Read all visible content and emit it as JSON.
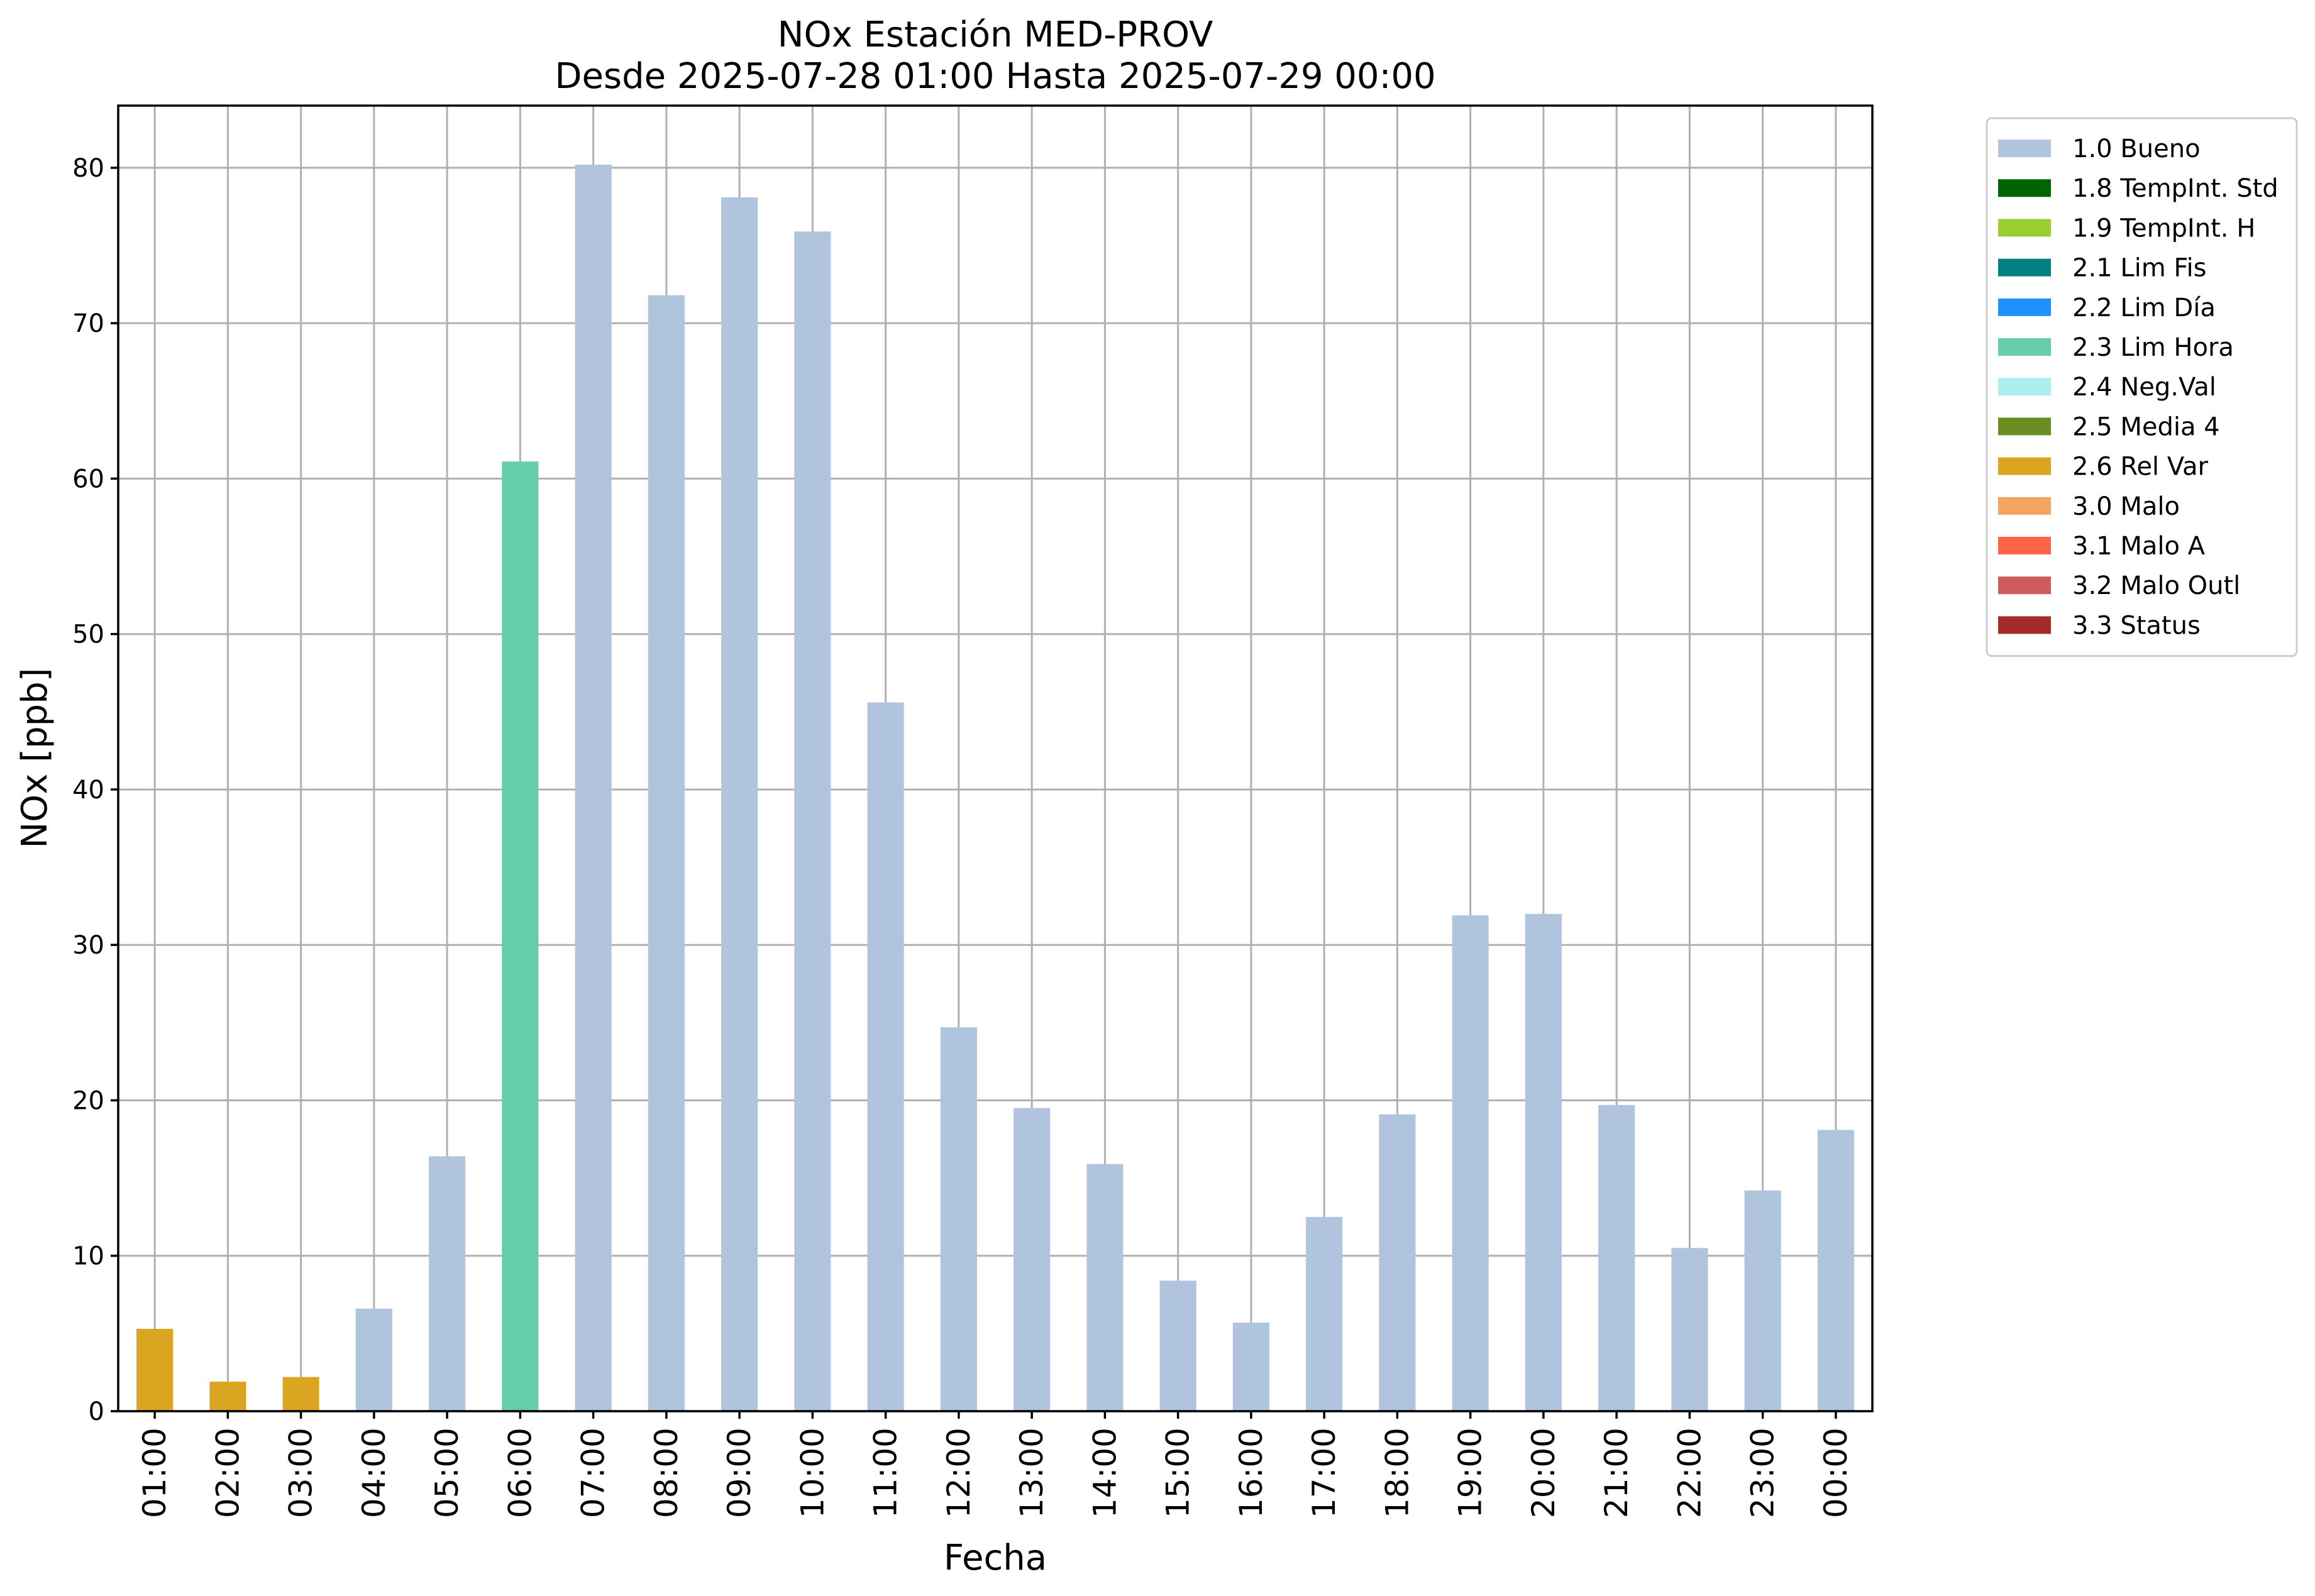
{
  "chart_data": {
    "type": "bar",
    "title": "NOx Estación MED-PROV",
    "subtitle": "Desde 2025-07-28 01:00 Hasta 2025-07-29 00:00",
    "xlabel": "Fecha",
    "ylabel": "NOx [ppb]",
    "ylim": [
      0,
      84
    ],
    "yticks": [
      0,
      10,
      20,
      30,
      40,
      50,
      60,
      70,
      80
    ],
    "grid": true,
    "legend_position": "outside-top-right",
    "categories": [
      "01:00",
      "02:00",
      "03:00",
      "04:00",
      "05:00",
      "06:00",
      "07:00",
      "08:00",
      "09:00",
      "10:00",
      "11:00",
      "12:00",
      "13:00",
      "14:00",
      "15:00",
      "16:00",
      "17:00",
      "18:00",
      "19:00",
      "20:00",
      "21:00",
      "22:00",
      "23:00",
      "00:00"
    ],
    "values": [
      5.3,
      1.9,
      2.2,
      6.6,
      16.4,
      61.1,
      80.2,
      71.8,
      78.1,
      75.9,
      45.6,
      24.7,
      19.5,
      15.9,
      8.4,
      5.7,
      12.5,
      19.1,
      31.9,
      32.0,
      19.7,
      10.5,
      14.2,
      18.1
    ],
    "bar_flags": [
      "2.6 Rel Var",
      "2.6 Rel Var",
      "2.6 Rel Var",
      "1.0 Bueno",
      "1.0 Bueno",
      "2.3 Lim Hora",
      "1.0 Bueno",
      "1.0 Bueno",
      "1.0 Bueno",
      "1.0 Bueno",
      "1.0 Bueno",
      "1.0 Bueno",
      "1.0 Bueno",
      "1.0 Bueno",
      "1.0 Bueno",
      "1.0 Bueno",
      "1.0 Bueno",
      "1.0 Bueno",
      "1.0 Bueno",
      "1.0 Bueno",
      "1.0 Bueno",
      "1.0 Bueno",
      "1.0 Bueno",
      "1.0 Bueno"
    ],
    "legend": [
      {
        "label": "1.0 Bueno",
        "color": "#b0c4de"
      },
      {
        "label": "1.8 TempInt. Std",
        "color": "#006400"
      },
      {
        "label": "1.9 TempInt. H",
        "color": "#9acd32"
      },
      {
        "label": "2.1 Lim Fis",
        "color": "#008080"
      },
      {
        "label": "2.2 Lim Día",
        "color": "#1e90ff"
      },
      {
        "label": "2.3 Lim Hora",
        "color": "#66cdaa"
      },
      {
        "label": "2.4 Neg.Val",
        "color": "#afeeee"
      },
      {
        "label": "2.5 Media 4",
        "color": "#6b8e23"
      },
      {
        "label": "2.6 Rel Var",
        "color": "#daa520"
      },
      {
        "label": "3.0 Malo",
        "color": "#f4a460"
      },
      {
        "label": "3.1 Malo A",
        "color": "#ff6347"
      },
      {
        "label": "3.2 Malo Outl",
        "color": "#cd5c5c"
      },
      {
        "label": "3.3 Status",
        "color": "#a52a2a"
      }
    ]
  }
}
